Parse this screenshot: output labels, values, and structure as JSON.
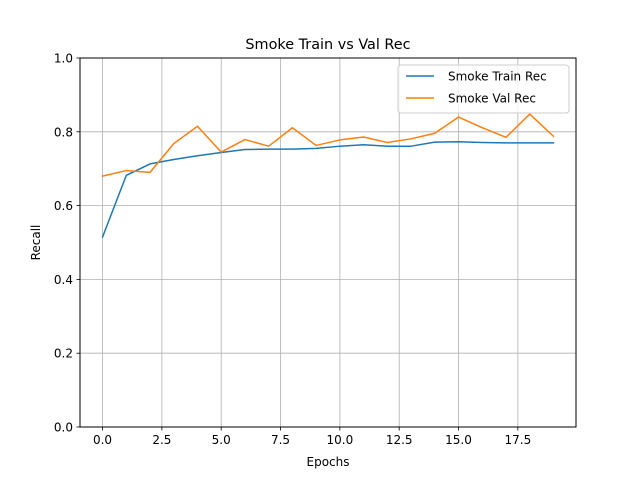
{
  "chart_data": {
    "type": "line",
    "title": "Smoke Train vs Val Rec",
    "xlabel": "Epochs",
    "ylabel": "Recall",
    "xlim": [
      -0.95,
      19.95
    ],
    "ylim": [
      0.0,
      1.0
    ],
    "xticks": [
      0.0,
      2.5,
      5.0,
      7.5,
      10.0,
      12.5,
      15.0,
      17.5
    ],
    "xtick_labels": [
      "0.0",
      "2.5",
      "5.0",
      "7.5",
      "10.0",
      "12.5",
      "15.0",
      "17.5"
    ],
    "yticks": [
      0.0,
      0.2,
      0.4,
      0.6,
      0.8,
      1.0
    ],
    "ytick_labels": [
      "0.0",
      "0.2",
      "0.4",
      "0.6",
      "0.8",
      "1.0"
    ],
    "grid": true,
    "legend_position": "top-right",
    "x": [
      0,
      1,
      2,
      3,
      4,
      5,
      6,
      7,
      8,
      9,
      10,
      11,
      12,
      13,
      14,
      15,
      16,
      17,
      18,
      19
    ],
    "series": [
      {
        "name": "Smoke Train Rec",
        "color": "#1f77b4",
        "values": [
          0.515,
          0.682,
          0.713,
          0.725,
          0.735,
          0.744,
          0.752,
          0.753,
          0.753,
          0.755,
          0.761,
          0.765,
          0.761,
          0.761,
          0.772,
          0.773,
          0.771,
          0.77,
          0.77,
          0.77
        ]
      },
      {
        "name": "Smoke Val Rec",
        "color": "#ff7f0e",
        "values": [
          0.68,
          0.695,
          0.69,
          0.768,
          0.815,
          0.745,
          0.779,
          0.761,
          0.811,
          0.763,
          0.778,
          0.786,
          0.771,
          0.781,
          0.796,
          0.84,
          0.811,
          0.785,
          0.848,
          0.788
        ]
      }
    ]
  }
}
